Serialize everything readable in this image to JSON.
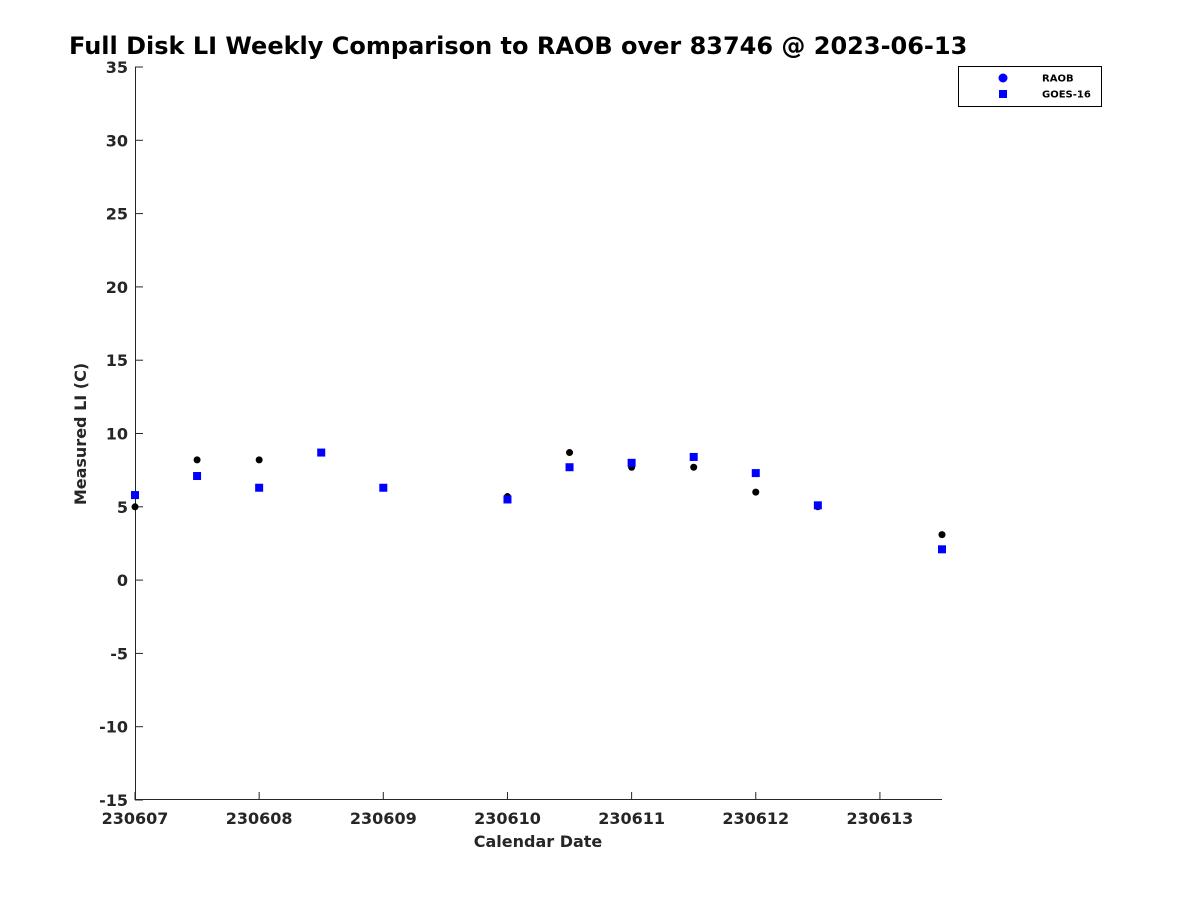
{
  "chart_data": {
    "type": "scatter",
    "title": "Full Disk LI Weekly Comparison to RAOB over 83746 @ 2023-06-13",
    "xlabel": "Calendar Date",
    "ylabel": "Measured LI (C)",
    "xlim": [
      "2023-06-07 00:00",
      "2023-06-13 12:00"
    ],
    "ylim": [
      -15,
      35
    ],
    "x_ticks": [
      {
        "value": "2023-06-07",
        "label": "230607"
      },
      {
        "value": "2023-06-08",
        "label": "230608"
      },
      {
        "value": "2023-06-09",
        "label": "230609"
      },
      {
        "value": "2023-06-10",
        "label": "230610"
      },
      {
        "value": "2023-06-11",
        "label": "230611"
      },
      {
        "value": "2023-06-12",
        "label": "230612"
      },
      {
        "value": "2023-06-13",
        "label": "230613"
      }
    ],
    "y_ticks": [
      35,
      30,
      25,
      20,
      15,
      10,
      5,
      0,
      -5,
      -10,
      -15
    ],
    "y_tick_labels": [
      "35",
      "30",
      "25",
      "20",
      "15",
      "10",
      "5",
      "0",
      "-5",
      "-10",
      "-15"
    ],
    "grid": false,
    "legend": {
      "placement": "top-right",
      "entries": [
        "RAOB",
        "GOES-16"
      ]
    },
    "series": [
      {
        "name": "RAOB",
        "marker": "circle",
        "point_color": "#000000",
        "legend_color": "#0000ff",
        "x": [
          "2023-06-07 00:00",
          "2023-06-07 12:00",
          "2023-06-08 00:00",
          "2023-06-08 12:00",
          "2023-06-09 00:00",
          "2023-06-10 00:00",
          "2023-06-10 12:00",
          "2023-06-11 00:00",
          "2023-06-11 12:00",
          "2023-06-12 00:00",
          "2023-06-12 12:00",
          "2023-06-13 12:00"
        ],
        "y": [
          5.0,
          8.2,
          8.2,
          8.7,
          6.3,
          5.7,
          8.7,
          7.7,
          7.7,
          6.0,
          5.0,
          3.1
        ]
      },
      {
        "name": "GOES-16",
        "marker": "square",
        "point_color": "#0000ff",
        "legend_color": "#0000ff",
        "x": [
          "2023-06-07 00:00",
          "2023-06-07 12:00",
          "2023-06-08 00:00",
          "2023-06-08 12:00",
          "2023-06-09 00:00",
          "2023-06-10 00:00",
          "2023-06-10 12:00",
          "2023-06-11 00:00",
          "2023-06-11 12:00",
          "2023-06-12 00:00",
          "2023-06-12 12:00",
          "2023-06-13 12:00"
        ],
        "y": [
          5.8,
          7.1,
          6.3,
          8.7,
          6.3,
          5.5,
          7.7,
          8.0,
          8.4,
          7.3,
          5.1,
          2.1
        ]
      }
    ]
  }
}
